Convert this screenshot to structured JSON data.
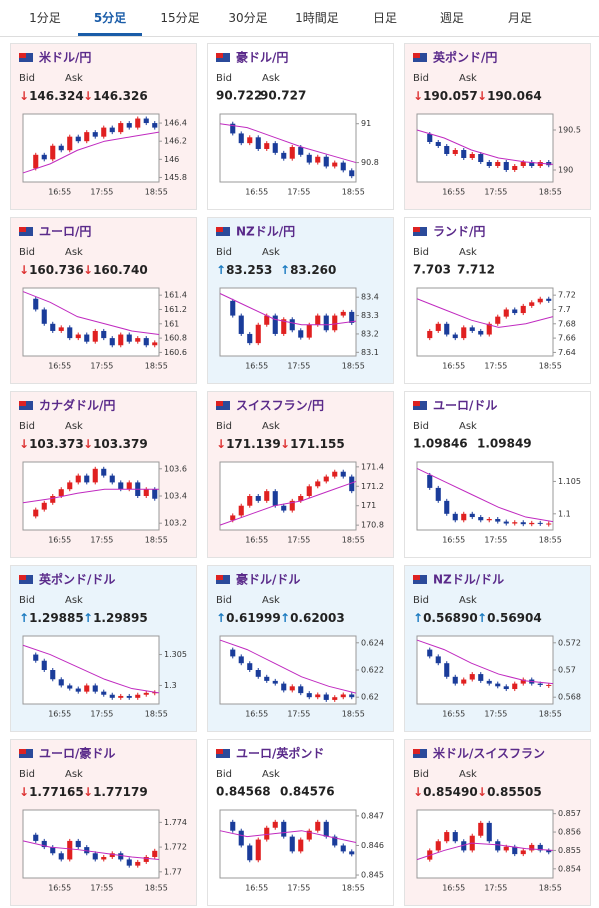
{
  "tabs": [
    "1分足",
    "5分足",
    "15分足",
    "30分足",
    "1時間足",
    "日足",
    "週足",
    "月足"
  ],
  "active_tab": 1,
  "bid_label": "Bid",
  "ask_label": "Ask",
  "time_labels": [
    "16:55",
    "17:55",
    "18:55"
  ],
  "cards": [
    {
      "title": "米ドル/円",
      "bid": "↓146.324",
      "ask": "↓146.326",
      "ylim": [
        145.75,
        146.5
      ],
      "yticks": [
        145.8,
        146,
        146.2,
        146.4
      ],
      "closes": [
        145.9,
        146.05,
        146.0,
        146.15,
        146.1,
        146.25,
        146.2,
        146.3,
        146.25,
        146.35,
        146.3,
        146.4,
        146.35,
        146.45,
        146.4,
        146.35
      ],
      "ma": [
        145.85,
        145.95,
        146.1,
        146.2,
        146.25,
        146.3
      ]
    },
    {
      "title": "豪ドル/円",
      "bid": "90.722",
      "ask": "90.727",
      "ylim": [
        90.7,
        91.05
      ],
      "yticks": [
        90.8,
        91
      ],
      "closes": [
        91.0,
        90.95,
        90.9,
        90.93,
        90.87,
        90.9,
        90.85,
        90.82,
        90.88,
        90.84,
        90.8,
        90.83,
        90.78,
        90.8,
        90.76,
        90.73
      ],
      "ma": [
        91.0,
        90.98,
        90.93,
        90.88,
        90.84,
        90.8
      ]
    },
    {
      "title": "英ポンド/円",
      "bid": "↓190.057",
      "ask": "↓190.064",
      "ylim": [
        189.85,
        190.7
      ],
      "yticks": [
        190,
        190.5
      ],
      "closes": [
        190.45,
        190.35,
        190.3,
        190.2,
        190.25,
        190.15,
        190.2,
        190.1,
        190.05,
        190.1,
        190.0,
        190.05,
        190.1,
        190.05,
        190.1,
        190.06
      ],
      "ma": [
        190.5,
        190.4,
        190.25,
        190.15,
        190.1,
        190.07
      ]
    },
    {
      "title": "ユーロ/円",
      "bid": "↓160.736",
      "ask": "↓160.740",
      "ylim": [
        160.55,
        161.5
      ],
      "yticks": [
        160.6,
        160.8,
        161,
        161.2,
        161.4
      ],
      "closes": [
        161.35,
        161.2,
        161.0,
        160.9,
        160.95,
        160.8,
        160.85,
        160.75,
        160.9,
        160.8,
        160.7,
        160.85,
        160.75,
        160.8,
        160.7,
        160.74
      ],
      "ma": [
        161.45,
        161.3,
        161.1,
        161.0,
        160.9,
        160.85
      ]
    },
    {
      "title": "NZドル/円",
      "bid": "↑83.253",
      "ask": "↑83.260",
      "ylim": [
        83.08,
        83.45
      ],
      "yticks": [
        83.1,
        83.2,
        83.3,
        83.4
      ],
      "closes": [
        83.38,
        83.3,
        83.2,
        83.15,
        83.25,
        83.3,
        83.2,
        83.28,
        83.22,
        83.18,
        83.25,
        83.3,
        83.22,
        83.3,
        83.32,
        83.26
      ],
      "ma": [
        83.42,
        83.35,
        83.28,
        83.25,
        83.25,
        83.27
      ]
    },
    {
      "title": "ランド/円",
      "bid": "7.703",
      "ask": "7.712",
      "ylim": [
        7.635,
        7.73
      ],
      "yticks": [
        7.64,
        7.66,
        7.68,
        7.7,
        7.72
      ],
      "closes": [
        7.66,
        7.67,
        7.68,
        7.665,
        7.66,
        7.675,
        7.67,
        7.665,
        7.68,
        7.69,
        7.7,
        7.695,
        7.705,
        7.71,
        7.715,
        7.712
      ],
      "ma": [
        7.715,
        7.7,
        7.685,
        7.675,
        7.68,
        7.69
      ]
    },
    {
      "title": "カナダドル/円",
      "bid": "↓103.373",
      "ask": "↓103.379",
      "ylim": [
        103.15,
        103.65
      ],
      "yticks": [
        103.2,
        103.4,
        103.6
      ],
      "closes": [
        103.25,
        103.3,
        103.35,
        103.4,
        103.45,
        103.5,
        103.55,
        103.5,
        103.6,
        103.55,
        103.5,
        103.45,
        103.5,
        103.4,
        103.45,
        103.38
      ],
      "ma": [
        103.35,
        103.38,
        103.42,
        103.45,
        103.45,
        103.45
      ]
    },
    {
      "title": "スイスフラン/円",
      "bid": "↓171.139",
      "ask": "↓171.155",
      "ylim": [
        170.75,
        171.45
      ],
      "yticks": [
        170.8,
        171,
        171.2,
        171.4
      ],
      "closes": [
        170.85,
        170.9,
        171.0,
        171.1,
        171.05,
        171.15,
        171.0,
        170.95,
        171.05,
        171.1,
        171.2,
        171.25,
        171.3,
        171.35,
        171.3,
        171.15
      ],
      "ma": [
        170.8,
        170.9,
        171.0,
        171.05,
        171.15,
        171.25
      ]
    },
    {
      "title": "ユーロ/ドル",
      "bid": "1.09846",
      "ask": "1.09849",
      "ylim": [
        1.0975,
        1.108
      ],
      "yticks": [
        1.1,
        1.105
      ],
      "closes": [
        1.106,
        1.104,
        1.102,
        1.1,
        1.099,
        1.1,
        1.0995,
        1.099,
        1.0992,
        1.0988,
        1.0985,
        1.0987,
        1.0984,
        1.0986,
        1.0985,
        1.0985
      ],
      "ma": [
        1.107,
        1.105,
        1.103,
        1.101,
        1.0995,
        1.0988
      ]
    },
    {
      "title": "英ポンド/ドル",
      "bid": "↑1.29885",
      "ask": "↑1.29895",
      "ylim": [
        1.297,
        1.308
      ],
      "yticks": [
        1.3,
        1.305
      ],
      "closes": [
        1.305,
        1.304,
        1.3025,
        1.301,
        1.3,
        1.2995,
        1.299,
        1.3,
        1.299,
        1.2985,
        1.298,
        1.2983,
        1.298,
        1.2985,
        1.2988,
        1.2989
      ],
      "ma": [
        1.3065,
        1.305,
        1.303,
        1.301,
        1.2995,
        1.2988
      ]
    },
    {
      "title": "豪ドル/ドル",
      "bid": "↑0.61999",
      "ask": "↑0.62003",
      "ylim": [
        0.6195,
        0.6245
      ],
      "yticks": [
        0.62,
        0.622,
        0.624
      ],
      "closes": [
        0.6235,
        0.623,
        0.6225,
        0.622,
        0.6215,
        0.6212,
        0.621,
        0.6205,
        0.6208,
        0.6203,
        0.62,
        0.6202,
        0.6198,
        0.62,
        0.6202,
        0.62
      ],
      "ma": [
        0.6242,
        0.6235,
        0.6225,
        0.6215,
        0.6208,
        0.6203
      ]
    },
    {
      "title": "NZドル/ドル",
      "bid": "↑0.56890",
      "ask": "↑0.56904",
      "ylim": [
        0.5675,
        0.5725
      ],
      "yticks": [
        0.568,
        0.57,
        0.572
      ],
      "closes": [
        0.5715,
        0.571,
        0.5705,
        0.5695,
        0.569,
        0.5693,
        0.5697,
        0.5692,
        0.569,
        0.5688,
        0.5686,
        0.569,
        0.5693,
        0.569,
        0.5689,
        0.5689
      ],
      "ma": [
        0.5722,
        0.5715,
        0.5705,
        0.5697,
        0.5692,
        0.569
      ]
    },
    {
      "title": "ユーロ/豪ドル",
      "bid": "↓1.77165",
      "ask": "↓1.77179",
      "ylim": [
        1.7695,
        1.775
      ],
      "yticks": [
        1.77,
        1.772,
        1.774
      ],
      "closes": [
        1.773,
        1.7725,
        1.772,
        1.7715,
        1.771,
        1.7725,
        1.772,
        1.7715,
        1.771,
        1.7712,
        1.7715,
        1.771,
        1.7705,
        1.7708,
        1.7712,
        1.7717
      ],
      "ma": [
        1.7725,
        1.772,
        1.7718,
        1.7715,
        1.7712,
        1.771
      ]
    },
    {
      "title": "ユーロ/英ポンド",
      "bid": "0.84568",
      "ask": "0.84576",
      "ylim": [
        0.8449,
        0.8472
      ],
      "yticks": [
        0.845,
        0.846,
        0.847
      ],
      "closes": [
        0.8468,
        0.8465,
        0.846,
        0.8455,
        0.8462,
        0.8466,
        0.8468,
        0.8463,
        0.8458,
        0.8462,
        0.8465,
        0.8468,
        0.8463,
        0.846,
        0.8458,
        0.8457
      ],
      "ma": [
        0.8465,
        0.8463,
        0.8464,
        0.8465,
        0.8463,
        0.8461
      ]
    },
    {
      "title": "米ドル/スイスフラン",
      "bid": "↓0.85490",
      "ask": "↓0.85505",
      "ylim": [
        0.8535,
        0.8572
      ],
      "yticks": [
        0.854,
        0.855,
        0.856,
        0.857
      ],
      "closes": [
        0.8545,
        0.855,
        0.8555,
        0.856,
        0.8555,
        0.855,
        0.8558,
        0.8565,
        0.8555,
        0.855,
        0.8552,
        0.8548,
        0.855,
        0.8553,
        0.855,
        0.8549
      ],
      "ma": [
        0.8545,
        0.855,
        0.8554,
        0.8553,
        0.8551,
        0.855
      ]
    }
  ]
}
